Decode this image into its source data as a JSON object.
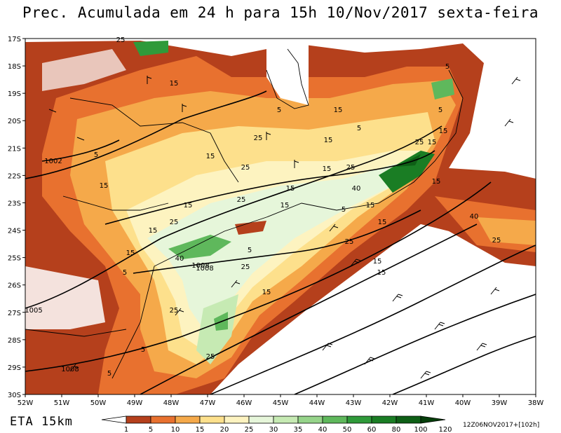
{
  "title": "Prec. Acumulada em 24 h para 15h 10/Nov/2017 sexta-feira",
  "model_label": "ETA 15km",
  "run_info": "12Z06NOV2017+[102h]",
  "lat_labels": [
    "17S",
    "18S",
    "19S",
    "20S",
    "21S",
    "22S",
    "23S",
    "24S",
    "25S",
    "26S",
    "27S",
    "28S",
    "29S",
    "30S"
  ],
  "lon_labels": [
    "52W",
    "51W",
    "50W",
    "49W",
    "48W",
    "47W",
    "46W",
    "45W",
    "44W",
    "43W",
    "42W",
    "41W",
    "40W",
    "39W",
    "38W"
  ],
  "colorbar": {
    "ticks": [
      "1",
      "5",
      "10",
      "15",
      "20",
      "25",
      "30",
      "35",
      "40",
      "50",
      "60",
      "80",
      "100",
      "120"
    ],
    "colors": [
      "#ffffff",
      "#b5401c",
      "#e8712f",
      "#f5a94a",
      "#fde08c",
      "#fdf3c0",
      "#e6f6da",
      "#c6eab3",
      "#96d48a",
      "#5fb85c",
      "#2f9a3a",
      "#1a7d24",
      "#0e5f16",
      "#053e0a"
    ]
  },
  "isobar_labels": [
    "1002",
    "1005",
    "1008",
    "1008"
  ],
  "precip_labels": [
    "25",
    "15",
    "15",
    "5",
    "15",
    "5",
    "25",
    "15",
    "15",
    "25",
    "5",
    "25",
    "15",
    "15",
    "40",
    "15",
    "25",
    "15",
    "5",
    "15",
    "15",
    "25",
    "15",
    "25",
    "5",
    "15",
    "25",
    "15",
    "40",
    "25",
    "40",
    "1008",
    "25",
    "5",
    "15",
    "15",
    "5",
    "15",
    "5",
    "5",
    "25",
    "25",
    "15",
    "15",
    "5"
  ]
}
